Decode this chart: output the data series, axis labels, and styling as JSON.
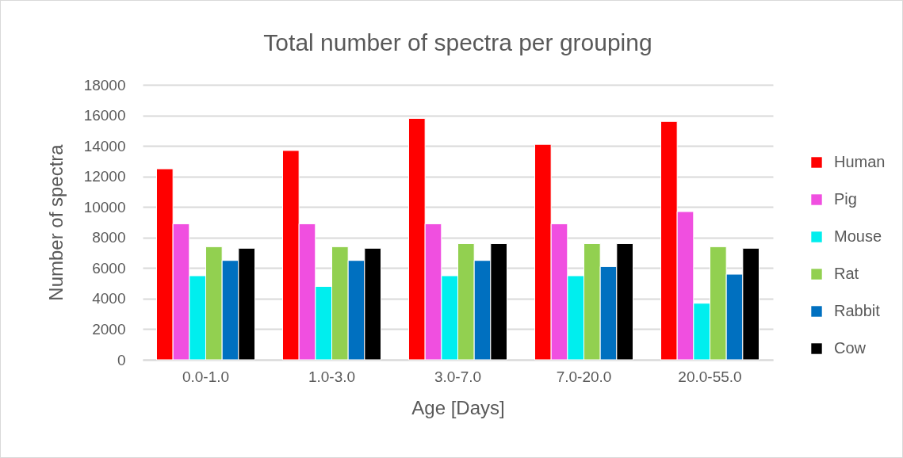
{
  "chart_data": {
    "type": "bar",
    "title": "Total number of spectra per grouping",
    "xlabel": "Age [Days]",
    "ylabel": "Number of spectra",
    "categories": [
      "0.0-1.0",
      "1.0-3.0",
      "3.0-7.0",
      "7.0-20.0",
      "20.0-55.0"
    ],
    "series": [
      {
        "name": "Human",
        "color": "#ff0000",
        "values": [
          12500,
          13700,
          15800,
          14100,
          15600
        ]
      },
      {
        "name": "Pig",
        "color": "#f04fe0",
        "values": [
          8900,
          8900,
          8900,
          8900,
          9700
        ]
      },
      {
        "name": "Mouse",
        "color": "#00eeee",
        "values": [
          5500,
          4800,
          5500,
          5500,
          3700
        ]
      },
      {
        "name": "Rat",
        "color": "#92d050",
        "values": [
          7400,
          7400,
          7600,
          7600,
          7400
        ]
      },
      {
        "name": "Rabbit",
        "color": "#0070c0",
        "values": [
          6500,
          6500,
          6500,
          6100,
          5600
        ]
      },
      {
        "name": "Cow",
        "color": "#000000",
        "values": [
          7300,
          7300,
          7600,
          7600,
          7300
        ]
      }
    ],
    "ylim": [
      0,
      18000
    ],
    "yticks": [
      0,
      2000,
      4000,
      6000,
      8000,
      10000,
      12000,
      14000,
      16000,
      18000
    ],
    "grid": "y",
    "legend": "right"
  }
}
